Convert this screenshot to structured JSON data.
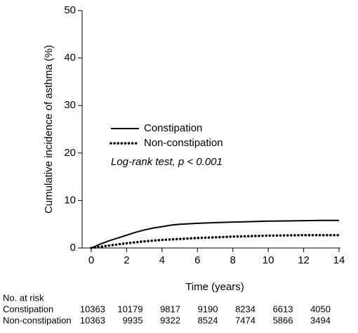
{
  "chart_data": {
    "type": "line",
    "xlabel": "Time (years)",
    "ylabel": "Cumulative incidence of asthma (%)",
    "annotation": "Log-rank test, p < 0.001",
    "x": [
      0,
      0.5,
      1,
      1.5,
      2,
      2.5,
      3,
      3.5,
      4,
      4.5,
      5,
      6,
      7,
      8,
      9,
      10,
      11,
      12,
      13,
      14
    ],
    "series": [
      {
        "name": "Constipation",
        "color": "#000000",
        "linestyle": "solid",
        "values": [
          0,
          0.8,
          1.5,
          2.1,
          2.7,
          3.3,
          3.8,
          4.2,
          4.5,
          4.8,
          5.0,
          5.2,
          5.35,
          5.45,
          5.55,
          5.65,
          5.7,
          5.75,
          5.8,
          5.8
        ]
      },
      {
        "name": "Non-constipation",
        "color": "#000000",
        "linestyle": "dotted",
        "values": [
          0,
          0.25,
          0.5,
          0.75,
          1.0,
          1.2,
          1.4,
          1.55,
          1.7,
          1.8,
          1.9,
          2.1,
          2.25,
          2.4,
          2.5,
          2.6,
          2.65,
          2.7,
          2.7,
          2.7
        ]
      }
    ],
    "xlim": [
      0,
      14
    ],
    "xticks": [
      0,
      2,
      4,
      6,
      8,
      10,
      12,
      14
    ],
    "ylim": [
      0,
      50
    ],
    "yticks": [
      0,
      10,
      20,
      30,
      40,
      50
    ],
    "risk_table": {
      "title": "No. at risk",
      "rows": [
        {
          "name": "Constipation",
          "values": [
            10363,
            10179,
            9817,
            9190,
            8234,
            6613,
            4050
          ]
        },
        {
          "name": "Non-constipation",
          "values": [
            10363,
            9935,
            9322,
            8524,
            7474,
            5866,
            3494
          ]
        }
      ]
    }
  }
}
